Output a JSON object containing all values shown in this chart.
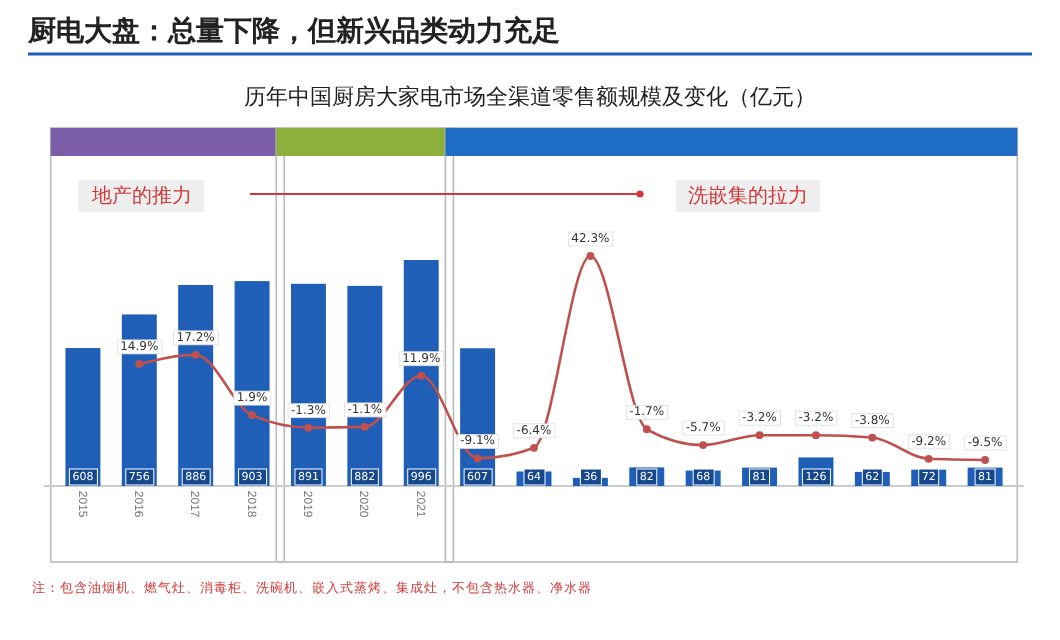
{
  "chart_data": {
    "type": "bar",
    "title": "厨电大盘：总量下降，但新兴品类动力充足",
    "subtitle": "历年中国厨房大家电市场全渠道零售额规模及变化（亿元）",
    "categories": [
      "2015",
      "2016",
      "2017",
      "2018",
      "2019",
      "2020",
      "2021",
      null,
      null,
      null,
      null,
      null,
      null,
      null,
      null,
      null,
      null
    ],
    "tick_labels": "x",
    "data_labels": true,
    "series": [
      {
        "color": "#1f5fb8",
        "values": [
          608,
          756,
          886,
          903,
          891,
          882,
          996,
          607,
          64,
          36,
          82,
          68,
          81,
          126,
          62,
          72,
          81
        ]
      },
      {
        "type": "line",
        "axis": "y2",
        "color": "#c0504d",
        "marker": "circle",
        "values": [
          null,
          14.9,
          17.2,
          1.9,
          -1.3,
          -1.1,
          11.9,
          -9.1,
          -6.4,
          42.3,
          -1.7,
          -5.7,
          -3.2,
          -3.2,
          -3.8,
          -9.2,
          -9.5
        ],
        "value_labels": [
          null,
          "14.9%",
          "17.2%",
          "1.9%",
          "-1.3%",
          "-1.1%",
          "11.9%",
          "-9.1%",
          "-6.4%",
          "42.3%",
          "-1.7%",
          "-5.7%",
          "-3.2%",
          "-3.2%",
          "-3.8%",
          "-9.2%",
          "-9.5%"
        ]
      }
    ],
    "annotations": [
      "地产的推力",
      "洗嵌集的拉力",
      "注：包含油烟机、燃气灶、消毒柜、洗碗机、嵌入式蒸烤、集成灶，不包含热水器、净水器"
    ]
  }
}
